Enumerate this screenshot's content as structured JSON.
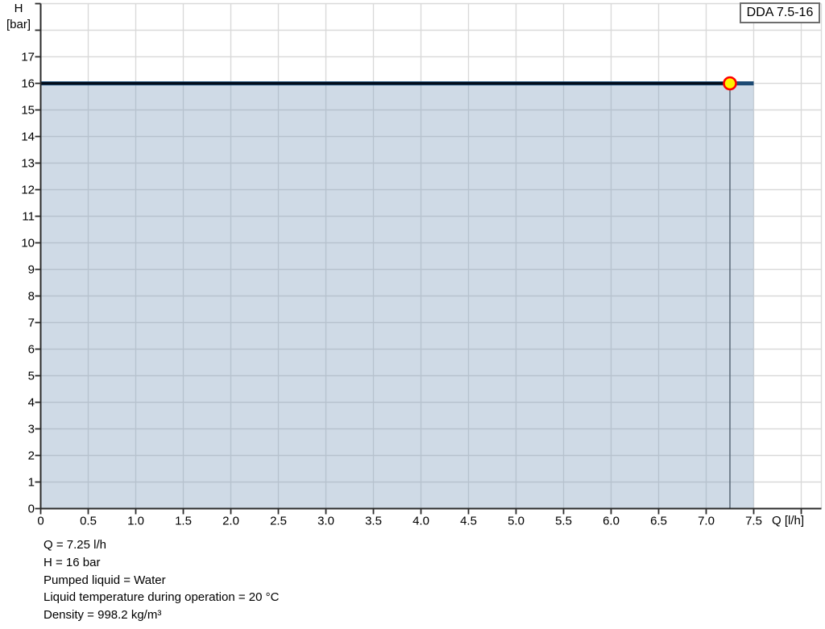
{
  "legend": {
    "label": "DDA 7.5-16",
    "position": "top-right"
  },
  "axes": {
    "y_title_line1": "H",
    "y_title_line2": "[bar]",
    "x_title": "Q [l/h]"
  },
  "chart_data": {
    "type": "area",
    "title": "DDA 7.5-16",
    "xlabel": "Q [l/h]",
    "ylabel": "H [bar]",
    "xlim": [
      0,
      8.2
    ],
    "ylim": [
      0,
      19
    ],
    "grid": true,
    "legend_position": "top-right",
    "x_ticks": [
      0,
      0.5,
      1.0,
      1.5,
      2.0,
      2.5,
      3.0,
      3.5,
      4.0,
      4.5,
      5.0,
      5.5,
      6.0,
      6.5,
      7.0,
      7.5,
      8.0
    ],
    "x_tick_labels": [
      "0",
      "0.5",
      "1.0",
      "1.5",
      "2.0",
      "2.5",
      "3.0",
      "3.5",
      "4.0",
      "4.5",
      "5.0",
      "5.5",
      "6.0",
      "6.5",
      "7.0",
      "7.5",
      ""
    ],
    "y_ticks": [
      0,
      1,
      2,
      3,
      4,
      5,
      6,
      7,
      8,
      9,
      10,
      11,
      12,
      13,
      14,
      15,
      16,
      17,
      18,
      19
    ],
    "y_tick_labels": [
      "0",
      "1",
      "2",
      "3",
      "4",
      "5",
      "6",
      "7",
      "8",
      "9",
      "10",
      "11",
      "12",
      "13",
      "14",
      "15",
      "16",
      "17",
      "",
      ""
    ],
    "series": [
      {
        "name": "DDA 7.5-16",
        "x": [
          0,
          7.5
        ],
        "y": [
          16,
          16
        ],
        "filled_to_zero": true
      }
    ],
    "selected_range": [
      0,
      7.25
    ],
    "operating_point": {
      "q": 7.25,
      "h": 16,
      "drop_line": true
    },
    "colors": {
      "curve": "#1d4a73",
      "curve_selected": "#020b18",
      "area_fill": "rgba(128,158,189,0.38)",
      "grid": "#d9d9d9",
      "axis": "#2b2b2b",
      "drop_line": "#5f6e7c",
      "marker_fill": "#fff200",
      "marker_stroke": "#ff0000",
      "legend_border": "#6e6e6e"
    }
  },
  "info": {
    "lines": [
      "Q = 7.25 l/h",
      "H = 16 bar",
      "Pumped liquid = Water",
      "Liquid temperature during operation = 20 °C",
      "Density = 998.2 kg/m³"
    ]
  }
}
